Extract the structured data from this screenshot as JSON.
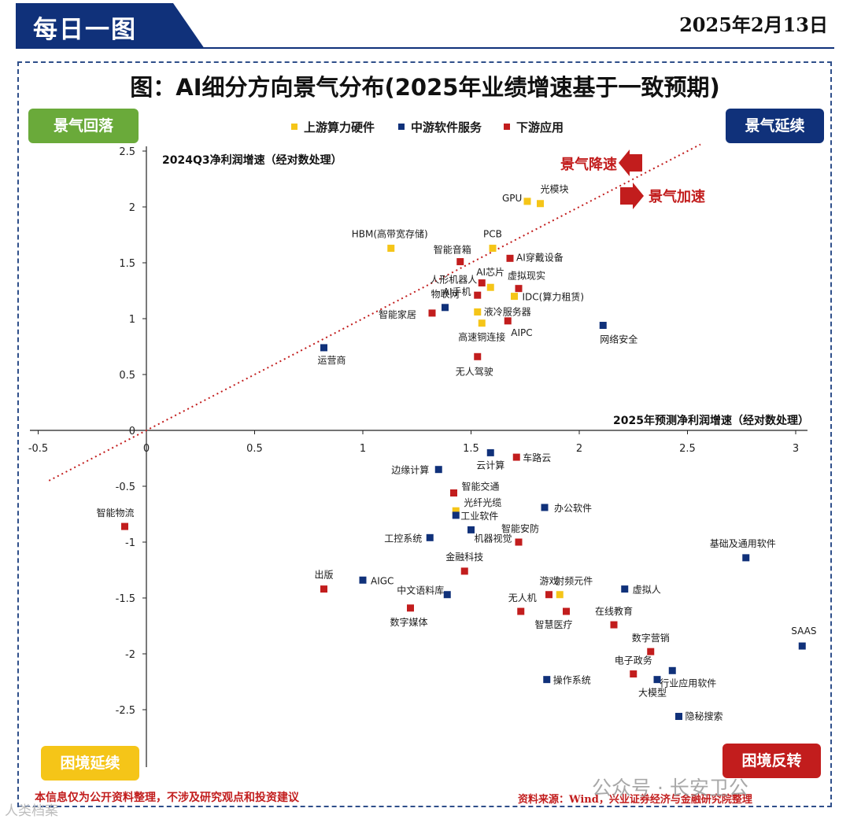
{
  "header": {
    "banner_text": "每日一图",
    "date": "2025年2月13日"
  },
  "corners": {
    "top_left": "景气回落",
    "top_right": "景气延续",
    "bottom_left": "困境延续",
    "bottom_right": "困境反转"
  },
  "footer": {
    "disclaimer": "本信息仅为公开资料整理，不涉及研究观点和投资建议",
    "source": "资料来源：Wind，兴业证券经济与金融研究院整理",
    "watermark": "公众号 · 长安卫公",
    "watermark2": "人类档案"
  },
  "colors": {
    "upstream": "#f5c518",
    "midstream": "#10317a",
    "downstream": "#c21d1d",
    "diagonal": "#c21d1d"
  },
  "chart_data": {
    "type": "scatter",
    "title": "图：AI细分方向景气分布(2025年业绩增速基于一致预期)",
    "xlabel": "2025年预测净利润增速（经对数处理）",
    "ylabel": "2024Q3净利润增速（经对数处理）",
    "xlim": [
      -0.5,
      3
    ],
    "ylim": [
      -2.5,
      2.5
    ],
    "xticks": [
      "-0.5",
      "0",
      "0.5",
      "1",
      "1.5",
      "2",
      "2.5",
      "3"
    ],
    "yticks": [
      "2.5",
      "2",
      "1.5",
      "1",
      "0.5",
      "0",
      "-0.5",
      "-1",
      "-1.5",
      "-2",
      "-2.5"
    ],
    "grid": false,
    "legend_position": "top",
    "annotations": [
      "景气降速",
      "景气加速"
    ],
    "series": [
      {
        "name": "上游算力硬件",
        "color": "#f5c518",
        "points": [
          {
            "label": "GPU",
            "x": 1.76,
            "y": 2.05
          },
          {
            "label": "光模块",
            "x": 1.82,
            "y": 2.03
          },
          {
            "label": "HBM(高带宽存储)",
            "x": 1.13,
            "y": 1.63
          },
          {
            "label": "PCB",
            "x": 1.6,
            "y": 1.63
          },
          {
            "label": "AI芯片",
            "x": 1.59,
            "y": 1.28
          },
          {
            "label": "IDC(算力租赁)",
            "x": 1.7,
            "y": 1.2
          },
          {
            "label": "液冷服务器",
            "x": 1.53,
            "y": 1.06
          },
          {
            "label": "高速铜连接",
            "x": 1.55,
            "y": 0.96
          },
          {
            "label": "光纤光缆",
            "x": 1.43,
            "y": -0.72
          },
          {
            "label": "射频元件",
            "x": 1.91,
            "y": -1.47
          }
        ]
      },
      {
        "name": "中游软件服务",
        "color": "#10317a",
        "points": [
          {
            "label": "物联网",
            "x": 1.38,
            "y": 1.1
          },
          {
            "label": "运营商",
            "x": 0.82,
            "y": 0.74
          },
          {
            "label": "网络安全",
            "x": 2.11,
            "y": 0.94
          },
          {
            "label": "云计算",
            "x": 1.59,
            "y": -0.2
          },
          {
            "label": "边缘计算",
            "x": 1.35,
            "y": -0.35
          },
          {
            "label": "工业软件",
            "x": 1.43,
            "y": -0.76
          },
          {
            "label": "办公软件",
            "x": 1.84,
            "y": -0.69
          },
          {
            "label": "机器视觉",
            "x": 1.5,
            "y": -0.89
          },
          {
            "label": "工控系统",
            "x": 1.31,
            "y": -0.96
          },
          {
            "label": "AIGC",
            "x": 1.0,
            "y": -1.34
          },
          {
            "label": "中文语料库",
            "x": 1.39,
            "y": -1.47
          },
          {
            "label": "虚拟人",
            "x": 2.21,
            "y": -1.42
          },
          {
            "label": "基础及通用软件",
            "x": 2.77,
            "y": -1.14
          },
          {
            "label": "SAAS",
            "x": 3.03,
            "y": -1.93
          },
          {
            "label": "操作系统",
            "x": 1.85,
            "y": -2.23
          },
          {
            "label": "行业应用软件",
            "x": 2.43,
            "y": -2.15
          },
          {
            "label": "大模型",
            "x": 2.36,
            "y": -2.23
          },
          {
            "label": "隐秘搜索",
            "x": 2.46,
            "y": -2.56
          }
        ]
      },
      {
        "name": "下游应用",
        "color": "#c21d1d",
        "points": [
          {
            "label": "智能音箱",
            "x": 1.45,
            "y": 1.51
          },
          {
            "label": "AI穿戴设备",
            "x": 1.68,
            "y": 1.54
          },
          {
            "label": "人形机器人",
            "x": 1.55,
            "y": 1.32
          },
          {
            "label": "虚拟现实",
            "x": 1.72,
            "y": 1.27
          },
          {
            "label": "AI手机",
            "x": 1.53,
            "y": 1.21
          },
          {
            "label": "智能家居",
            "x": 1.32,
            "y": 1.05
          },
          {
            "label": "AIPC",
            "x": 1.67,
            "y": 0.98
          },
          {
            "label": "无人驾驶",
            "x": 1.53,
            "y": 0.66
          },
          {
            "label": "车路云",
            "x": 1.71,
            "y": -0.24
          },
          {
            "label": "智能交通",
            "x": 1.42,
            "y": -0.56
          },
          {
            "label": "智能物流",
            "x": -0.1,
            "y": -0.86
          },
          {
            "label": "智能安防",
            "x": 1.72,
            "y": -1.0
          },
          {
            "label": "金融科技",
            "x": 1.47,
            "y": -1.26
          },
          {
            "label": "出版",
            "x": 0.82,
            "y": -1.42
          },
          {
            "label": "游戏",
            "x": 1.86,
            "y": -1.47
          },
          {
            "label": "数字媒体",
            "x": 1.22,
            "y": -1.59
          },
          {
            "label": "无人机",
            "x": 1.73,
            "y": -1.62
          },
          {
            "label": "智慧医疗",
            "x": 1.94,
            "y": -1.62
          },
          {
            "label": "在线教育",
            "x": 2.16,
            "y": -1.74
          },
          {
            "label": "数字营销",
            "x": 2.33,
            "y": -1.98
          },
          {
            "label": "电子政务",
            "x": 2.25,
            "y": -2.18
          }
        ]
      }
    ]
  }
}
